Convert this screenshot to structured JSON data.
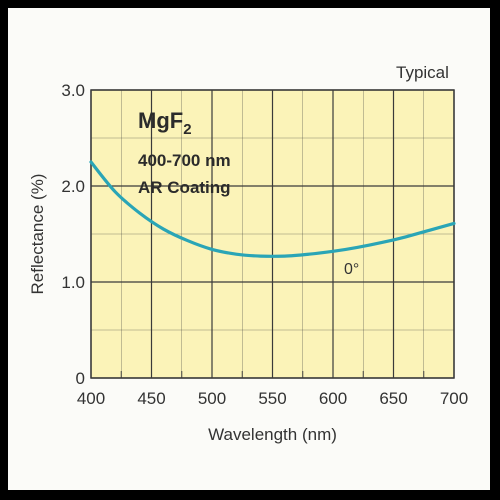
{
  "chart_data": {
    "type": "line",
    "annotation_top_right": "Typical",
    "title_main": "MgF",
    "title_sub": "2",
    "title_line2": "400-700 nm",
    "title_line3": "AR Coating",
    "xlabel": "Wavelength (nm)",
    "ylabel": "Reflectance (%)",
    "xlim": [
      400,
      700
    ],
    "ylim": [
      0,
      3.0
    ],
    "x_ticks": [
      400,
      450,
      500,
      550,
      600,
      650,
      700
    ],
    "x_tick_labels": [
      "400",
      "450",
      "500",
      "550",
      "600",
      "650",
      "700"
    ],
    "y_ticks": [
      0,
      1.0,
      2.0,
      3.0
    ],
    "y_tick_labels": [
      "0",
      "1.0",
      "2.0",
      "3.0"
    ],
    "grid": true,
    "series": [
      {
        "name": "0°",
        "x": [
          400,
          420,
          440,
          460,
          480,
          500,
          520,
          540,
          560,
          580,
          600,
          620,
          640,
          660,
          680,
          700
        ],
        "y": [
          2.25,
          1.94,
          1.72,
          1.55,
          1.43,
          1.34,
          1.29,
          1.27,
          1.27,
          1.29,
          1.32,
          1.36,
          1.41,
          1.47,
          1.54,
          1.61
        ]
      }
    ],
    "colors": {
      "plot_bg": "#fbf3b8",
      "grid": "#3a3a3a",
      "curve": "#2aa5b6",
      "text": "#333333"
    }
  }
}
